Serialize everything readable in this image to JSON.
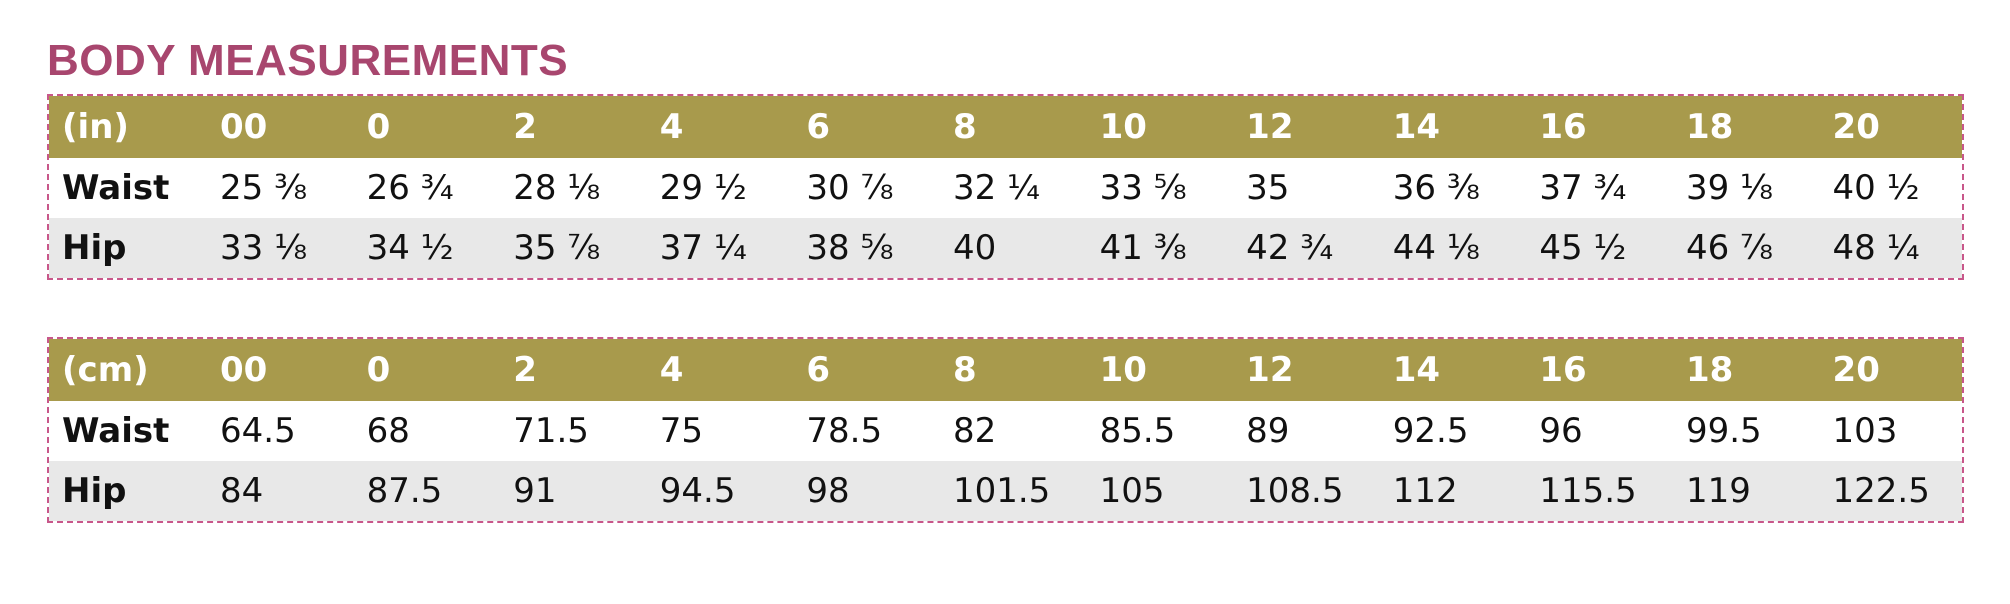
{
  "title": "BODY MEASUREMENTS",
  "tables": [
    {
      "header": [
        "(in)",
        "00",
        "0",
        "2",
        "4",
        "6",
        "8",
        "10",
        "12",
        "14",
        "16",
        "18",
        "20"
      ],
      "rows": [
        [
          "Waist",
          "25 ⅜",
          "26 ¾",
          "28 ⅛",
          "29 ½",
          "30 ⅞",
          "32 ¼",
          "33 ⅝",
          "35",
          "36 ⅜",
          "37 ¾",
          "39 ⅛",
          "40 ½"
        ],
        [
          "Hip",
          "33 ⅛",
          "34 ½",
          "35 ⅞",
          "37 ¼",
          "38 ⅝",
          "40",
          "41 ⅜",
          "42 ¾",
          "44 ⅛",
          "45 ½",
          "46 ⅞",
          "48 ¼"
        ]
      ]
    },
    {
      "header": [
        "(cm)",
        "00",
        "0",
        "2",
        "4",
        "6",
        "8",
        "10",
        "12",
        "14",
        "16",
        "18",
        "20"
      ],
      "rows": [
        [
          "Waist",
          "64.5",
          "68",
          "71.5",
          "75",
          "78.5",
          "82",
          "85.5",
          "89",
          "92.5",
          "96",
          "99.5",
          "103"
        ],
        [
          "Hip",
          "84",
          "87.5",
          "91",
          "94.5",
          "98",
          "101.5",
          "105",
          "108.5",
          "112",
          "115.5",
          "119",
          "122.5"
        ]
      ]
    }
  ]
}
